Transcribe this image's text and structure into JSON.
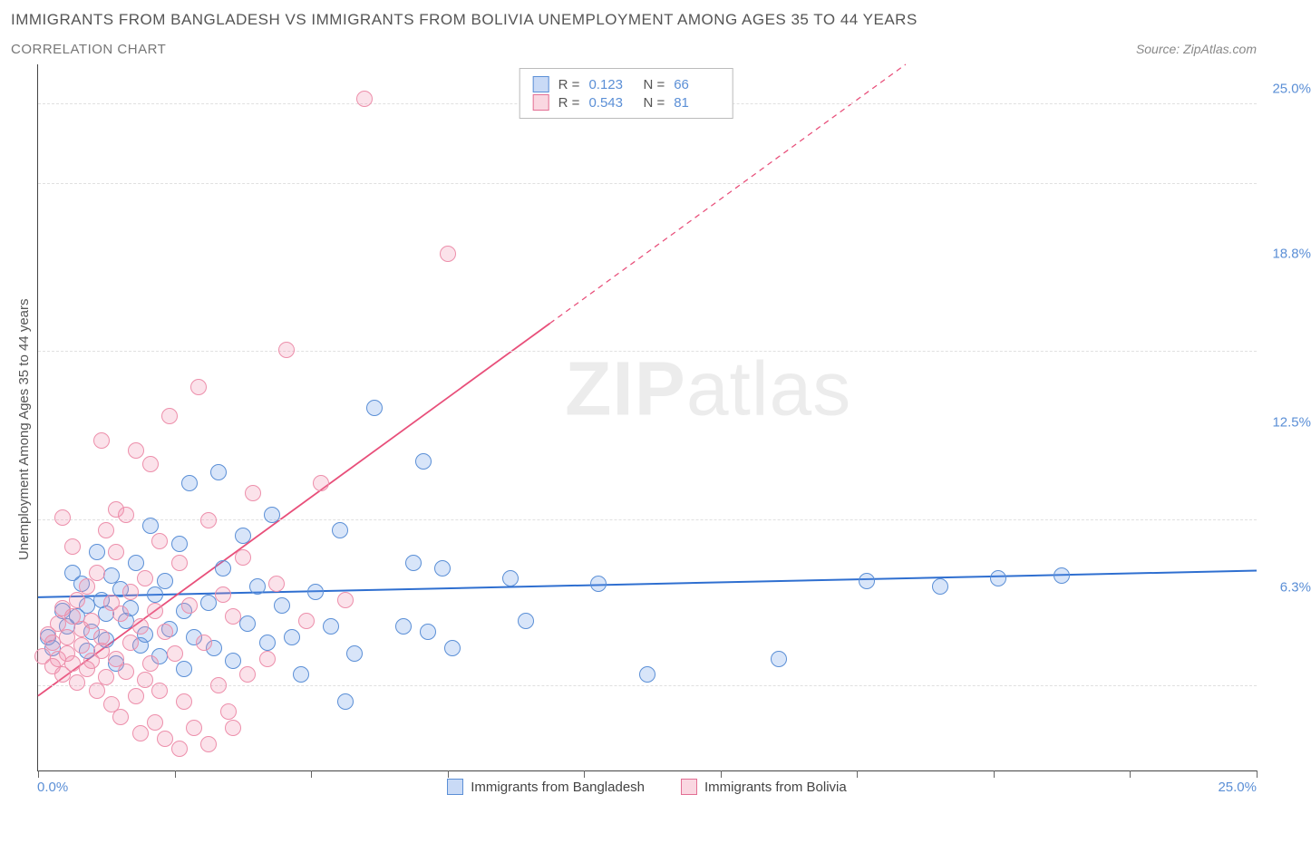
{
  "title": "IMMIGRANTS FROM BANGLADESH VS IMMIGRANTS FROM BOLIVIA UNEMPLOYMENT AMONG AGES 35 TO 44 YEARS",
  "subtitle": "CORRELATION CHART",
  "source": "Source: ZipAtlas.com",
  "ylabel": "Unemployment Among Ages 35 to 44 years",
  "watermark_a": "ZIP",
  "watermark_b": "atlas",
  "chart": {
    "type": "scatter",
    "xlim": [
      0,
      25
    ],
    "ylim": [
      0,
      26.5
    ],
    "x_min_label": "0.0%",
    "x_max_label": "25.0%",
    "y_ticks": [
      {
        "v": 6.3,
        "label": "6.3%"
      },
      {
        "v": 12.5,
        "label": "12.5%"
      },
      {
        "v": 18.8,
        "label": "18.8%"
      },
      {
        "v": 25.0,
        "label": "25.0%"
      }
    ],
    "x_tick_positions": [
      0,
      2.8,
      5.6,
      8.4,
      11.2,
      14.0,
      16.8,
      19.6,
      22.4,
      25.0
    ],
    "grid_dash_positions": [
      3.15,
      9.4,
      15.7,
      22.0,
      25.0
    ],
    "background_color": "#ffffff",
    "grid_color": "#e0e0e0",
    "axis_color": "#444444"
  },
  "series": [
    {
      "id": "bangladesh",
      "label": "Immigrants from Bangladesh",
      "color_fill": "rgba(100,150,230,0.25)",
      "color_stroke": "#5b8fd6",
      "marker_size": 18,
      "R": "0.123",
      "N": "66",
      "trend": {
        "x1": 0,
        "y1": 6.5,
        "x2": 25,
        "y2": 7.5,
        "solid_to_x": 25,
        "stroke": "#2f6fd0",
        "width": 2
      },
      "points": [
        [
          0.2,
          5.0
        ],
        [
          0.3,
          4.6
        ],
        [
          0.5,
          6.0
        ],
        [
          0.6,
          5.4
        ],
        [
          0.7,
          7.4
        ],
        [
          0.8,
          5.8
        ],
        [
          0.9,
          7.0
        ],
        [
          1.0,
          6.2
        ],
        [
          1.0,
          4.5
        ],
        [
          1.1,
          5.2
        ],
        [
          1.2,
          8.2
        ],
        [
          1.3,
          6.4
        ],
        [
          1.4,
          4.9
        ],
        [
          1.4,
          5.9
        ],
        [
          1.5,
          7.3
        ],
        [
          1.6,
          4.0
        ],
        [
          1.7,
          6.8
        ],
        [
          1.8,
          5.6
        ],
        [
          1.9,
          6.1
        ],
        [
          2.0,
          7.8
        ],
        [
          2.1,
          4.7
        ],
        [
          2.2,
          5.1
        ],
        [
          2.3,
          9.2
        ],
        [
          2.4,
          6.6
        ],
        [
          2.5,
          4.3
        ],
        [
          2.6,
          7.1
        ],
        [
          2.7,
          5.3
        ],
        [
          2.9,
          8.5
        ],
        [
          3.0,
          6.0
        ],
        [
          3.0,
          3.8
        ],
        [
          3.1,
          10.8
        ],
        [
          3.2,
          5.0
        ],
        [
          3.5,
          6.3
        ],
        [
          3.6,
          4.6
        ],
        [
          3.7,
          11.2
        ],
        [
          3.8,
          7.6
        ],
        [
          4.0,
          4.1
        ],
        [
          4.2,
          8.8
        ],
        [
          4.3,
          5.5
        ],
        [
          4.5,
          6.9
        ],
        [
          4.7,
          4.8
        ],
        [
          4.8,
          9.6
        ],
        [
          5.0,
          6.2
        ],
        [
          5.2,
          5.0
        ],
        [
          5.4,
          3.6
        ],
        [
          5.7,
          6.7
        ],
        [
          6.0,
          5.4
        ],
        [
          6.2,
          9.0
        ],
        [
          6.5,
          4.4
        ],
        [
          6.9,
          13.6
        ],
        [
          7.5,
          5.4
        ],
        [
          7.7,
          7.8
        ],
        [
          7.9,
          11.6
        ],
        [
          8.0,
          5.2
        ],
        [
          8.3,
          7.6
        ],
        [
          8.5,
          4.6
        ],
        [
          9.7,
          7.2
        ],
        [
          10.0,
          5.6
        ],
        [
          11.5,
          7.0
        ],
        [
          12.5,
          3.6
        ],
        [
          15.2,
          4.2
        ],
        [
          17.0,
          7.1
        ],
        [
          18.5,
          6.9
        ],
        [
          19.7,
          7.2
        ],
        [
          21.0,
          7.3
        ],
        [
          6.3,
          2.6
        ]
      ]
    },
    {
      "id": "bolivia",
      "label": "Immigrants from Bolivia",
      "color_fill": "rgba(240,140,170,0.25)",
      "color_stroke": "#ed8fab",
      "marker_size": 18,
      "R": "0.543",
      "N": "81",
      "trend": {
        "x1": 0,
        "y1": 2.8,
        "x2": 17.8,
        "y2": 26.5,
        "solid_to_x": 10.5,
        "stroke": "#e84f7a",
        "width": 1.8
      },
      "points": [
        [
          0.1,
          4.3
        ],
        [
          0.2,
          5.1
        ],
        [
          0.3,
          3.9
        ],
        [
          0.3,
          4.8
        ],
        [
          0.4,
          5.5
        ],
        [
          0.4,
          4.2
        ],
        [
          0.5,
          6.1
        ],
        [
          0.5,
          3.6
        ],
        [
          0.6,
          5.0
        ],
        [
          0.6,
          4.4
        ],
        [
          0.7,
          5.8
        ],
        [
          0.7,
          4.0
        ],
        [
          0.8,
          6.4
        ],
        [
          0.8,
          3.3
        ],
        [
          0.9,
          5.3
        ],
        [
          0.9,
          4.7
        ],
        [
          1.0,
          6.9
        ],
        [
          1.0,
          3.8
        ],
        [
          1.1,
          5.6
        ],
        [
          1.1,
          4.1
        ],
        [
          1.2,
          7.4
        ],
        [
          1.2,
          3.0
        ],
        [
          1.3,
          5.0
        ],
        [
          1.3,
          4.5
        ],
        [
          1.4,
          9.0
        ],
        [
          1.4,
          3.5
        ],
        [
          1.5,
          6.3
        ],
        [
          1.5,
          2.5
        ],
        [
          1.6,
          8.2
        ],
        [
          1.6,
          4.2
        ],
        [
          1.7,
          5.9
        ],
        [
          1.7,
          2.0
        ],
        [
          1.8,
          9.6
        ],
        [
          1.8,
          3.7
        ],
        [
          1.9,
          6.7
        ],
        [
          1.9,
          4.8
        ],
        [
          2.0,
          12.0
        ],
        [
          2.0,
          2.8
        ],
        [
          2.1,
          5.4
        ],
        [
          2.1,
          1.4
        ],
        [
          2.2,
          7.2
        ],
        [
          2.2,
          3.4
        ],
        [
          2.3,
          11.5
        ],
        [
          2.3,
          4.0
        ],
        [
          2.4,
          6.0
        ],
        [
          2.4,
          1.8
        ],
        [
          2.5,
          8.6
        ],
        [
          2.5,
          3.0
        ],
        [
          2.6,
          5.2
        ],
        [
          2.6,
          1.2
        ],
        [
          2.7,
          13.3
        ],
        [
          2.8,
          4.4
        ],
        [
          2.9,
          7.8
        ],
        [
          3.0,
          2.6
        ],
        [
          3.1,
          6.2
        ],
        [
          3.2,
          1.6
        ],
        [
          3.3,
          14.4
        ],
        [
          3.4,
          4.8
        ],
        [
          3.5,
          9.4
        ],
        [
          3.7,
          3.2
        ],
        [
          3.8,
          6.6
        ],
        [
          3.9,
          2.2
        ],
        [
          4.0,
          5.8
        ],
        [
          4.2,
          8.0
        ],
        [
          4.3,
          3.6
        ],
        [
          4.4,
          10.4
        ],
        [
          4.7,
          4.2
        ],
        [
          4.9,
          7.0
        ],
        [
          5.1,
          15.8
        ],
        [
          5.5,
          5.6
        ],
        [
          5.8,
          10.8
        ],
        [
          6.3,
          6.4
        ],
        [
          6.7,
          25.2
        ],
        [
          4.0,
          1.6
        ],
        [
          3.5,
          1.0
        ],
        [
          2.9,
          0.8
        ],
        [
          8.4,
          19.4
        ],
        [
          1.3,
          12.4
        ],
        [
          1.6,
          9.8
        ],
        [
          0.5,
          9.5
        ],
        [
          0.7,
          8.4
        ]
      ]
    }
  ],
  "legend_box": {
    "rows": [
      {
        "swatch": "blue",
        "R_label": "R =",
        "R": "0.123",
        "N_label": "N =",
        "N": "66"
      },
      {
        "swatch": "pink",
        "R_label": "R =",
        "R": "0.543",
        "N_label": "N =",
        "N": "81"
      }
    ]
  },
  "bottom_legend": [
    {
      "swatch": "blue",
      "label": "Immigrants from Bangladesh"
    },
    {
      "swatch": "pink",
      "label": "Immigrants from Bolivia"
    }
  ]
}
